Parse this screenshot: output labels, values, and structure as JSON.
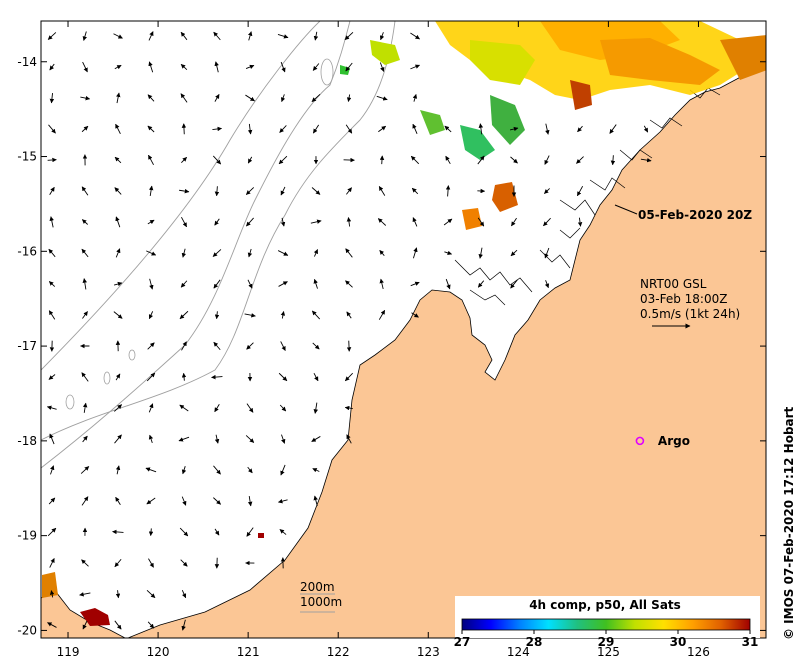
{
  "chart_data": {
    "type": "map",
    "x_axis": {
      "ticks": [
        119,
        120,
        121,
        122,
        123,
        124,
        125,
        126
      ],
      "range": [
        118.7,
        126.75
      ]
    },
    "y_axis": {
      "ticks": [
        -14,
        -15,
        -16,
        -17,
        -18,
        -19,
        -20
      ],
      "range": [
        -20.08,
        -13.57
      ]
    },
    "timestamp_label": "05-Feb-2020 20Z",
    "current_legend": {
      "line1": "NRT00 GSL",
      "line2": "03-Feb 18:00Z",
      "line3": "0.5m/s (1kt 24h)"
    },
    "argo": {
      "label": "Argo",
      "lon": 125.35,
      "lat": -18.0
    },
    "depth_legend": {
      "line1": "200m",
      "line2": "1000m"
    },
    "colorbar": {
      "title": "4h comp, p50, All Sats",
      "ticks": [
        27,
        28,
        29,
        30,
        31
      ],
      "range": [
        27,
        31
      ],
      "colors": [
        "#00007f",
        "#0000ff",
        "#0080ff",
        "#00e0ff",
        "#20c080",
        "#40c020",
        "#c0e000",
        "#ffe000",
        "#ffa000",
        "#e06000",
        "#a00000"
      ]
    },
    "credit": "© IMOS 07-Feb-2020 17:12 Hobart"
  },
  "colors": {
    "land": "#fbc695",
    "contour": "#a0a0a0",
    "argo": "#e000ff"
  }
}
